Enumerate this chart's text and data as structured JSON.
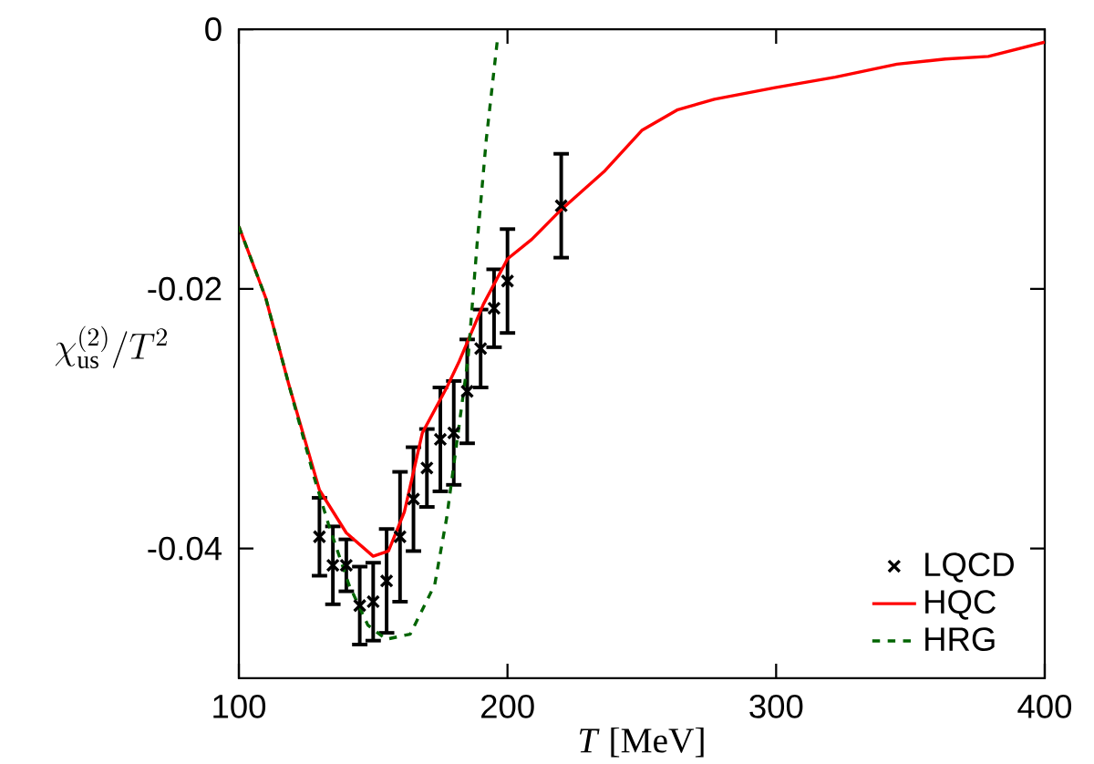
{
  "chart_data": {
    "type": "line",
    "xlabel": "*T* [MeV]",
    "ylabel": "\\chi_{\\rm us}^{(2)}/T^2",
    "xlim": [
      100,
      400
    ],
    "ylim": [
      -0.05,
      0
    ],
    "xticks": [
      100,
      200,
      300,
      400
    ],
    "yticks": [
      -0.04,
      -0.02,
      0
    ],
    "legend": "bottom right",
    "grid": false,
    "series": [
      {
        "name": "LQCD",
        "type": "scatter",
        "color": "#000000",
        "marker": "cross",
        "x": [
          130,
          135,
          140,
          145,
          150,
          155,
          160,
          165,
          170,
          175,
          180,
          185,
          190,
          195,
          200,
          220
        ],
        "values": [
          -0.0391,
          -0.0413,
          -0.0413,
          -0.0444,
          -0.0441,
          -0.0425,
          -0.0391,
          -0.0362,
          -0.0338,
          -0.0316,
          -0.0311,
          -0.0279,
          -0.0246,
          -0.0215,
          -0.0194,
          -0.0136
        ],
        "errors": [
          0.003,
          0.003,
          0.002,
          0.003,
          0.003,
          0.004,
          0.005,
          0.004,
          0.003,
          0.004,
          0.004,
          0.004,
          0.003,
          0.003,
          0.004,
          0.004
        ]
      },
      {
        "name": "HQC",
        "color": "#ff0000",
        "line_style": "solid",
        "x": [
          100,
          110,
          118.5,
          130,
          140,
          150,
          155.7,
          161.6,
          168.3,
          177.4,
          182,
          191,
          200,
          209,
          220,
          236.3,
          250,
          263.4,
          277,
          299.6,
          322,
          345,
          363,
          379,
          400
        ],
        "values": [
          -0.0152,
          -0.0207,
          -0.0273,
          -0.0355,
          -0.0388,
          -0.0406,
          -0.0402,
          -0.0372,
          -0.0311,
          -0.0276,
          -0.0256,
          -0.0212,
          -0.0177,
          -0.0162,
          -0.0139,
          -0.0109,
          -0.0078,
          -0.0062,
          -0.0054,
          -0.0045,
          -0.0037,
          -0.0027,
          -0.0023,
          -0.0021,
          -0.001
        ]
      },
      {
        "name": "HRG",
        "color": "#006400",
        "line_style": "dashed",
        "x": [
          100,
          110,
          118.5,
          128,
          133.3,
          141,
          148,
          154.8,
          163.8,
          172.9,
          177.4,
          185.3,
          188.7,
          192.1,
          196.2
        ],
        "values": [
          -0.0152,
          -0.0207,
          -0.0273,
          -0.0345,
          -0.0381,
          -0.0428,
          -0.0459,
          -0.047,
          -0.0466,
          -0.0428,
          -0.0376,
          -0.0254,
          -0.0165,
          -0.0085,
          -0.0009
        ]
      }
    ]
  }
}
